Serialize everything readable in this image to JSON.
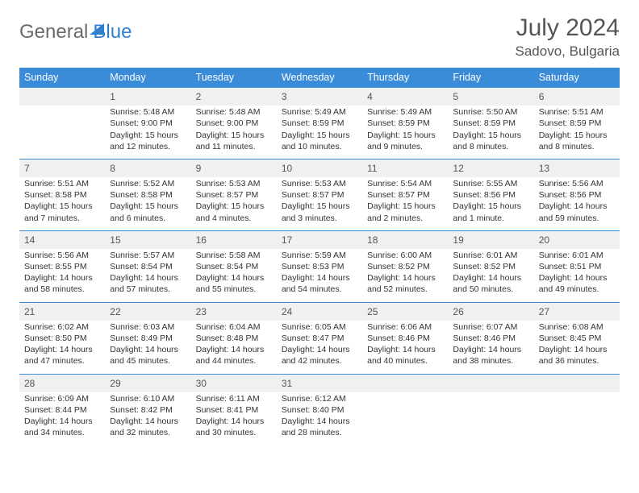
{
  "logo": {
    "part1": "General",
    "part2": "Blue"
  },
  "title": "July 2024",
  "location": "Sadovo, Bulgaria",
  "headers": [
    "Sunday",
    "Monday",
    "Tuesday",
    "Wednesday",
    "Thursday",
    "Friday",
    "Saturday"
  ],
  "colors": {
    "header_bg": "#3a8bd8",
    "header_text": "#ffffff",
    "daynum_bg": "#eef0f2",
    "border": "#3a8bd8",
    "text": "#333333",
    "logo_gray": "#6a6a6a",
    "logo_blue": "#2f7fd1"
  },
  "weeks": [
    [
      null,
      {
        "n": "1",
        "sr": "Sunrise: 5:48 AM",
        "ss": "Sunset: 9:00 PM",
        "d1": "Daylight: 15 hours",
        "d2": "and 12 minutes."
      },
      {
        "n": "2",
        "sr": "Sunrise: 5:48 AM",
        "ss": "Sunset: 9:00 PM",
        "d1": "Daylight: 15 hours",
        "d2": "and 11 minutes."
      },
      {
        "n": "3",
        "sr": "Sunrise: 5:49 AM",
        "ss": "Sunset: 8:59 PM",
        "d1": "Daylight: 15 hours",
        "d2": "and 10 minutes."
      },
      {
        "n": "4",
        "sr": "Sunrise: 5:49 AM",
        "ss": "Sunset: 8:59 PM",
        "d1": "Daylight: 15 hours",
        "d2": "and 9 minutes."
      },
      {
        "n": "5",
        "sr": "Sunrise: 5:50 AM",
        "ss": "Sunset: 8:59 PM",
        "d1": "Daylight: 15 hours",
        "d2": "and 8 minutes."
      },
      {
        "n": "6",
        "sr": "Sunrise: 5:51 AM",
        "ss": "Sunset: 8:59 PM",
        "d1": "Daylight: 15 hours",
        "d2": "and 8 minutes."
      }
    ],
    [
      {
        "n": "7",
        "sr": "Sunrise: 5:51 AM",
        "ss": "Sunset: 8:58 PM",
        "d1": "Daylight: 15 hours",
        "d2": "and 7 minutes."
      },
      {
        "n": "8",
        "sr": "Sunrise: 5:52 AM",
        "ss": "Sunset: 8:58 PM",
        "d1": "Daylight: 15 hours",
        "d2": "and 6 minutes."
      },
      {
        "n": "9",
        "sr": "Sunrise: 5:53 AM",
        "ss": "Sunset: 8:57 PM",
        "d1": "Daylight: 15 hours",
        "d2": "and 4 minutes."
      },
      {
        "n": "10",
        "sr": "Sunrise: 5:53 AM",
        "ss": "Sunset: 8:57 PM",
        "d1": "Daylight: 15 hours",
        "d2": "and 3 minutes."
      },
      {
        "n": "11",
        "sr": "Sunrise: 5:54 AM",
        "ss": "Sunset: 8:57 PM",
        "d1": "Daylight: 15 hours",
        "d2": "and 2 minutes."
      },
      {
        "n": "12",
        "sr": "Sunrise: 5:55 AM",
        "ss": "Sunset: 8:56 PM",
        "d1": "Daylight: 15 hours",
        "d2": "and 1 minute."
      },
      {
        "n": "13",
        "sr": "Sunrise: 5:56 AM",
        "ss": "Sunset: 8:56 PM",
        "d1": "Daylight: 14 hours",
        "d2": "and 59 minutes."
      }
    ],
    [
      {
        "n": "14",
        "sr": "Sunrise: 5:56 AM",
        "ss": "Sunset: 8:55 PM",
        "d1": "Daylight: 14 hours",
        "d2": "and 58 minutes."
      },
      {
        "n": "15",
        "sr": "Sunrise: 5:57 AM",
        "ss": "Sunset: 8:54 PM",
        "d1": "Daylight: 14 hours",
        "d2": "and 57 minutes."
      },
      {
        "n": "16",
        "sr": "Sunrise: 5:58 AM",
        "ss": "Sunset: 8:54 PM",
        "d1": "Daylight: 14 hours",
        "d2": "and 55 minutes."
      },
      {
        "n": "17",
        "sr": "Sunrise: 5:59 AM",
        "ss": "Sunset: 8:53 PM",
        "d1": "Daylight: 14 hours",
        "d2": "and 54 minutes."
      },
      {
        "n": "18",
        "sr": "Sunrise: 6:00 AM",
        "ss": "Sunset: 8:52 PM",
        "d1": "Daylight: 14 hours",
        "d2": "and 52 minutes."
      },
      {
        "n": "19",
        "sr": "Sunrise: 6:01 AM",
        "ss": "Sunset: 8:52 PM",
        "d1": "Daylight: 14 hours",
        "d2": "and 50 minutes."
      },
      {
        "n": "20",
        "sr": "Sunrise: 6:01 AM",
        "ss": "Sunset: 8:51 PM",
        "d1": "Daylight: 14 hours",
        "d2": "and 49 minutes."
      }
    ],
    [
      {
        "n": "21",
        "sr": "Sunrise: 6:02 AM",
        "ss": "Sunset: 8:50 PM",
        "d1": "Daylight: 14 hours",
        "d2": "and 47 minutes."
      },
      {
        "n": "22",
        "sr": "Sunrise: 6:03 AM",
        "ss": "Sunset: 8:49 PM",
        "d1": "Daylight: 14 hours",
        "d2": "and 45 minutes."
      },
      {
        "n": "23",
        "sr": "Sunrise: 6:04 AM",
        "ss": "Sunset: 8:48 PM",
        "d1": "Daylight: 14 hours",
        "d2": "and 44 minutes."
      },
      {
        "n": "24",
        "sr": "Sunrise: 6:05 AM",
        "ss": "Sunset: 8:47 PM",
        "d1": "Daylight: 14 hours",
        "d2": "and 42 minutes."
      },
      {
        "n": "25",
        "sr": "Sunrise: 6:06 AM",
        "ss": "Sunset: 8:46 PM",
        "d1": "Daylight: 14 hours",
        "d2": "and 40 minutes."
      },
      {
        "n": "26",
        "sr": "Sunrise: 6:07 AM",
        "ss": "Sunset: 8:46 PM",
        "d1": "Daylight: 14 hours",
        "d2": "and 38 minutes."
      },
      {
        "n": "27",
        "sr": "Sunrise: 6:08 AM",
        "ss": "Sunset: 8:45 PM",
        "d1": "Daylight: 14 hours",
        "d2": "and 36 minutes."
      }
    ],
    [
      {
        "n": "28",
        "sr": "Sunrise: 6:09 AM",
        "ss": "Sunset: 8:44 PM",
        "d1": "Daylight: 14 hours",
        "d2": "and 34 minutes."
      },
      {
        "n": "29",
        "sr": "Sunrise: 6:10 AM",
        "ss": "Sunset: 8:42 PM",
        "d1": "Daylight: 14 hours",
        "d2": "and 32 minutes."
      },
      {
        "n": "30",
        "sr": "Sunrise: 6:11 AM",
        "ss": "Sunset: 8:41 PM",
        "d1": "Daylight: 14 hours",
        "d2": "and 30 minutes."
      },
      {
        "n": "31",
        "sr": "Sunrise: 6:12 AM",
        "ss": "Sunset: 8:40 PM",
        "d1": "Daylight: 14 hours",
        "d2": "and 28 minutes."
      },
      null,
      null,
      null
    ]
  ]
}
